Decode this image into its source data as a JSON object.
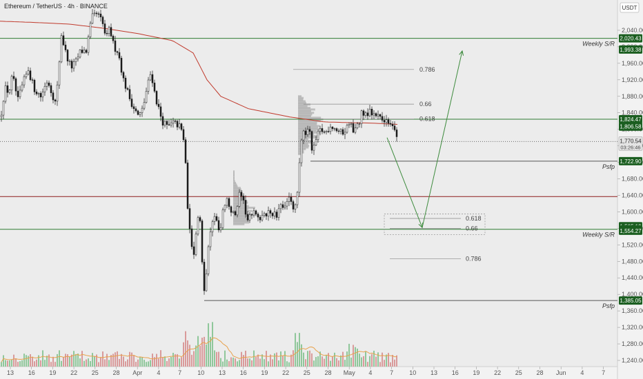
{
  "header": {
    "symbol_title": "Ethereum / TetherUS · 4h · BINANCE",
    "currency_label": "USDT"
  },
  "colors": {
    "background": "#ececec",
    "up_candle": "#ffffff",
    "down_candle": "#1a1a1a",
    "green_line": "#2e7d32",
    "red_line": "#8b1a1a",
    "ma_line": "#c0392b",
    "volume_up": "#8fc79a",
    "volume_down": "#d99a9a",
    "volume_ma": "#e8a14a",
    "fib_line": "#888888",
    "profile_fill": "#9a9a9a"
  },
  "chart_data": {
    "type": "candlestick",
    "title": "Ethereum / TetherUS · 4h · BINANCE",
    "y_axis": {
      "ylim": [
        1230,
        2090
      ],
      "ticks": [
        2040,
        2000,
        1960,
        1920,
        1880,
        1840,
        1800,
        1760,
        1720,
        1680,
        1640,
        1600,
        1560,
        1520,
        1480,
        1440,
        1400,
        1360,
        1320,
        1280,
        1240
      ],
      "tick_labels": [
        "2,040.00",
        "2,000.00",
        "1,960.00",
        "1,920.00",
        "1,880.00",
        "1,840.00",
        "1,800.00",
        "1,760.00",
        "1,720.00",
        "1,680.00",
        "1,640.00",
        "1,600.00",
        "1,560.00",
        "1,520.00",
        "1,480.00",
        "1,440.00",
        "1,400.00",
        "1,360.00",
        "1,320.00",
        "1,280.00",
        "1,240.00"
      ]
    },
    "x_axis": {
      "labels": [
        "13",
        "16",
        "19",
        "22",
        "25",
        "28",
        "Apr",
        "4",
        "7",
        "10",
        "13",
        "16",
        "19",
        "22",
        "25",
        "28",
        "May",
        "4",
        "7",
        "10",
        "13",
        "16",
        "19",
        "22",
        "25",
        "28",
        "Jun",
        "4",
        "7"
      ]
    },
    "price_path_anchors": [
      [
        0,
        1830
      ],
      [
        6,
        1900
      ],
      [
        12,
        1890
      ],
      [
        17,
        1930
      ],
      [
        25,
        1870
      ],
      [
        32,
        1910
      ],
      [
        40,
        1945
      ],
      [
        48,
        1900
      ],
      [
        58,
        1880
      ],
      [
        68,
        1920
      ],
      [
        80,
        1860
      ],
      [
        88,
        2030
      ],
      [
        95,
        1980
      ],
      [
        102,
        1950
      ],
      [
        108,
        1960
      ],
      [
        116,
        1990
      ],
      [
        124,
        1990
      ],
      [
        132,
        2070
      ],
      [
        140,
        2080
      ],
      [
        147,
        2060
      ],
      [
        153,
        2020
      ],
      [
        158,
        2045
      ],
      [
        164,
        2000
      ],
      [
        170,
        1990
      ],
      [
        178,
        1920
      ],
      [
        186,
        1880
      ],
      [
        192,
        1855
      ],
      [
        200,
        1830
      ],
      [
        206,
        1850
      ],
      [
        212,
        1900
      ],
      [
        218,
        1940
      ],
      [
        224,
        1880
      ],
      [
        229,
        1850
      ],
      [
        234,
        1820
      ],
      [
        242,
        1805
      ],
      [
        250,
        1815
      ],
      [
        258,
        1810
      ],
      [
        264,
        1790
      ],
      [
        268,
        1720
      ],
      [
        272,
        1580
      ],
      [
        276,
        1530
      ],
      [
        280,
        1500
      ],
      [
        284,
        1560
      ],
      [
        288,
        1610
      ],
      [
        292,
        1470
      ],
      [
        296,
        1400
      ],
      [
        300,
        1510
      ],
      [
        306,
        1570
      ],
      [
        312,
        1590
      ],
      [
        318,
        1540
      ],
      [
        322,
        1610
      ],
      [
        328,
        1630
      ],
      [
        334,
        1600
      ],
      [
        340,
        1590
      ],
      [
        346,
        1640
      ],
      [
        352,
        1620
      ],
      [
        358,
        1580
      ],
      [
        364,
        1590
      ],
      [
        370,
        1600
      ],
      [
        376,
        1580
      ],
      [
        382,
        1590
      ],
      [
        388,
        1600
      ],
      [
        394,
        1595
      ],
      [
        400,
        1590
      ],
      [
        406,
        1610
      ],
      [
        412,
        1620
      ],
      [
        418,
        1640
      ],
      [
        424,
        1600
      ],
      [
        430,
        1640
      ],
      [
        434,
        1740
      ],
      [
        438,
        1800
      ],
      [
        442,
        1790
      ],
      [
        446,
        1810
      ],
      [
        452,
        1740
      ],
      [
        458,
        1780
      ],
      [
        464,
        1800
      ],
      [
        470,
        1790
      ],
      [
        478,
        1810
      ],
      [
        486,
        1800
      ],
      [
        494,
        1790
      ],
      [
        500,
        1800
      ],
      [
        506,
        1815
      ],
      [
        512,
        1795
      ],
      [
        518,
        1810
      ],
      [
        524,
        1845
      ],
      [
        530,
        1835
      ],
      [
        536,
        1850
      ],
      [
        542,
        1830
      ],
      [
        548,
        1840
      ],
      [
        554,
        1820
      ],
      [
        560,
        1825
      ],
      [
        566,
        1810
      ],
      [
        572,
        1800
      ],
      [
        576,
        1771
      ]
    ],
    "moving_average_anchors": [
      [
        0,
        2062
      ],
      [
        50,
        2059
      ],
      [
        100,
        2055
      ],
      [
        150,
        2045
      ],
      [
        200,
        2032
      ],
      [
        250,
        2015
      ],
      [
        280,
        1985
      ],
      [
        300,
        1920
      ],
      [
        320,
        1880
      ],
      [
        360,
        1850
      ],
      [
        420,
        1830
      ],
      [
        470,
        1818
      ],
      [
        510,
        1816
      ],
      [
        540,
        1815
      ],
      [
        576,
        1812
      ]
    ],
    "horizontal_levels": [
      {
        "price": 2020.43,
        "label": "Weekly S/R",
        "badge": "2,020.43",
        "color": "#2e7d32",
        "from_x": 0
      },
      {
        "price": 1993.38,
        "label": "",
        "badge": "1,993.38",
        "color": "#2e7d32",
        "from_x": null
      },
      {
        "price": 1824.47,
        "label": "",
        "badge": "1,824.47",
        "color": "#2e7d32",
        "from_x": 0
      },
      {
        "price": 1806.58,
        "label": "",
        "badge": "1,806.58",
        "color": "#2e7d32",
        "from_x": null
      },
      {
        "price": 1722.9,
        "label": "Psfp",
        "badge": "1,722.90",
        "color": "#555555",
        "from_x": 450
      },
      {
        "price": 1565.19,
        "label": "",
        "badge": "1,565.19",
        "color": "#2e7d32",
        "from_x": null
      },
      {
        "price": 1557.77,
        "label": "Weekly S/R",
        "badge": "1,557.77",
        "color": "#2e7d32",
        "from_x": 0
      },
      {
        "price": 1554.27,
        "label": "",
        "badge": "1,554.27",
        "color": "#2e7d32",
        "from_x": null
      },
      {
        "price": 1385.05,
        "label": "Psfp",
        "badge": "1,385.05",
        "color": "#555555",
        "from_x": 296
      },
      {
        "price": 1637,
        "label": "",
        "badge": "",
        "color": "#8b1a1a",
        "from_x": 0
      }
    ],
    "current_price": {
      "value": "1,770.54",
      "countdown": "03:26:46"
    },
    "fib_levels": [
      {
        "price": 1945,
        "label": "0.786",
        "x_from": 425,
        "x_to": 600,
        "label_x": 608
      },
      {
        "price": 1861,
        "label": "0.66",
        "x_from": 440,
        "x_to": 600,
        "label_x": 608
      },
      {
        "price": 1825,
        "label": "0.618",
        "x_from": 440,
        "x_to": 600,
        "label_x": 608
      },
      {
        "price": 1584,
        "label": "0.618",
        "x_from": 565,
        "x_to": 668,
        "label_x": 675
      },
      {
        "price": 1560,
        "label": "0.66",
        "x_from": 565,
        "x_to": 668,
        "label_x": 675
      },
      {
        "price": 1486,
        "label": "0.786",
        "x_from": 565,
        "x_to": 668,
        "label_x": 675
      }
    ],
    "projection_path": [
      [
        561,
        1780
      ],
      [
        612,
        1562
      ],
      [
        670,
        1990
      ]
    ],
    "grid": false,
    "legend": "none"
  }
}
